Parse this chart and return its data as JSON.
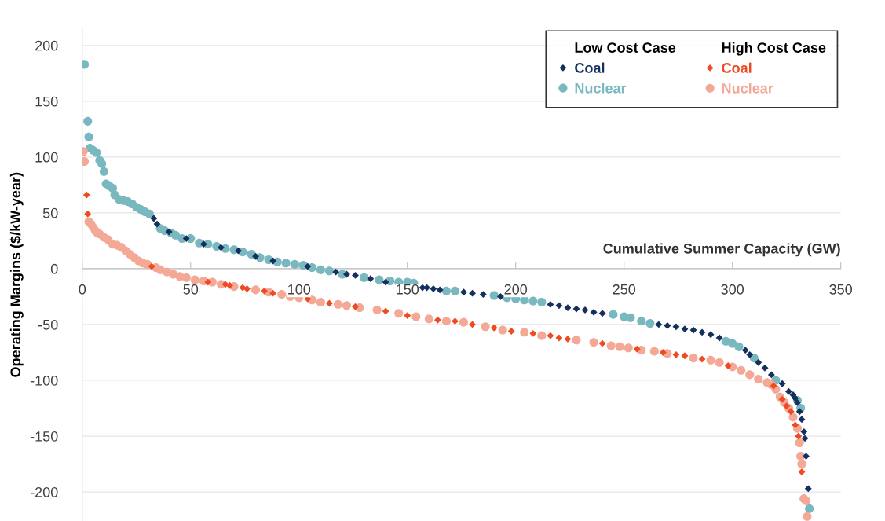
{
  "chart_data": {
    "type": "scatter",
    "xlabel": "Cumulative Summer Capacity (GW)",
    "ylabel": "Operating Margins ($/kW-year)",
    "xlim": [
      0,
      350
    ],
    "xticks": [
      0,
      50,
      100,
      150,
      200,
      250,
      300,
      350
    ],
    "ylim": [
      -226,
      215
    ],
    "yticks": [
      -200,
      -150,
      -100,
      -50,
      0,
      50,
      100,
      150,
      200
    ],
    "grid": "y",
    "legend": "top right",
    "annotations": [
      "Low Cost Case",
      "High Cost Case"
    ],
    "series": [
      {
        "name": "Coal",
        "color": "#14305e",
        "marker": "diamond",
        "x": [
          33,
          34.5,
          40,
          48,
          56,
          64,
          72,
          80,
          88,
          104,
          117,
          122,
          126,
          133,
          140,
          157,
          159,
          162,
          165,
          176,
          180,
          185,
          193,
          216,
          220,
          224,
          228,
          232,
          236,
          240,
          266,
          270,
          274,
          278,
          282,
          286,
          290,
          294,
          306,
          308,
          312,
          315,
          318,
          323,
          326,
          328,
          329,
          330,
          331,
          332,
          333,
          333.5,
          334,
          335
        ],
        "values": [
          45,
          40,
          33,
          27,
          22,
          19,
          16,
          11,
          7,
          2,
          -3,
          -5,
          -6,
          -9,
          -12,
          -17,
          -17,
          -18,
          -19,
          -21,
          -22,
          -23,
          -25,
          -32,
          -33,
          -35,
          -36,
          -37,
          -39,
          -40,
          -50,
          -51,
          -52,
          -54,
          -55,
          -57,
          -59,
          -62,
          -73,
          -77,
          -84,
          -89,
          -95,
          -103,
          -110,
          -113,
          -116,
          -120,
          -128,
          -135,
          -146,
          -152,
          -168,
          -197
        ]
      },
      {
        "name": "Nuclear",
        "color": "#7ab8bf",
        "marker": "circle",
        "x": [
          1,
          2.5,
          3,
          3.5,
          5,
          6.5,
          8,
          9,
          10,
          11,
          12.5,
          14,
          15,
          17,
          19,
          21,
          23,
          25,
          27,
          29,
          31,
          36,
          38,
          41,
          43,
          46,
          50,
          54,
          58,
          62,
          66,
          70,
          74,
          78,
          82,
          86,
          90,
          94,
          98,
          102,
          106,
          110,
          114,
          120,
          130,
          137,
          142,
          146,
          150,
          153,
          168,
          172,
          190,
          196,
          200,
          204,
          208,
          212,
          245,
          250,
          253,
          258,
          262,
          297,
          300,
          303,
          310,
          320,
          330,
          331.5,
          335.5
        ],
        "values": [
          183,
          132,
          118,
          108,
          106,
          104,
          97,
          94,
          87,
          76,
          74,
          72,
          66,
          62,
          61,
          60,
          58,
          55,
          53,
          51,
          49,
          36,
          34,
          32,
          30,
          27,
          27,
          23,
          22,
          20,
          18,
          17,
          15,
          13,
          10,
          8,
          6,
          5,
          4,
          3,
          1,
          -1,
          -2,
          -5,
          -8,
          -10,
          -11,
          -12,
          -12,
          -13,
          -20,
          -20,
          -24,
          -26,
          -27,
          -28,
          -29,
          -30,
          -41,
          -43,
          -44,
          -47,
          -49,
          -65,
          -67,
          -70,
          -80,
          -100,
          -118,
          -125,
          -215
        ]
      },
      {
        "name": "Coal",
        "color": "#ef4a22",
        "marker": "diamond",
        "x": [
          2,
          2.5,
          32,
          58,
          66,
          68,
          74,
          76,
          84,
          88,
          104,
          114,
          126,
          140,
          150,
          164,
          172,
          180,
          190,
          198,
          208,
          216,
          220,
          224,
          240,
          256,
          268,
          274,
          278,
          286,
          298,
          319,
          323,
          325,
          327,
          329,
          330.5,
          332
        ],
        "values": [
          66,
          49,
          2,
          -12,
          -14,
          -15,
          -17,
          -18,
          -20,
          -22,
          -27,
          -31,
          -34,
          -38,
          -42,
          -46,
          -47,
          -50,
          -53,
          -56,
          -58,
          -60,
          -62,
          -63,
          -67,
          -72,
          -75,
          -77,
          -78,
          -81,
          -87,
          -105,
          -117,
          -123,
          -128,
          -140,
          -150,
          -182
        ]
      },
      {
        "name": "Nuclear",
        "color": "#f4a996",
        "marker": "circle",
        "x": [
          0.5,
          1,
          3,
          4,
          5,
          6,
          7,
          8,
          10,
          12,
          14,
          16,
          18,
          20,
          22,
          24,
          26,
          28,
          30,
          34,
          36,
          39,
          42,
          45,
          48,
          52,
          56,
          60,
          64,
          70,
          80,
          86,
          92,
          96,
          100,
          106,
          110,
          118,
          122,
          128,
          136,
          146,
          154,
          160,
          168,
          176,
          186,
          194,
          204,
          212,
          228,
          236,
          244,
          248,
          252,
          258,
          264,
          270,
          282,
          290,
          294,
          300,
          304,
          308,
          312,
          316,
          318,
          320,
          322,
          324,
          326,
          328,
          330,
          331,
          331.5,
          332,
          333,
          334,
          334.5
        ],
        "values": [
          105,
          96,
          42,
          40,
          37,
          34,
          32,
          31,
          28,
          26,
          22,
          21,
          19,
          16,
          13,
          10,
          7,
          5,
          4,
          1,
          -1,
          -3,
          -5,
          -7,
          -8,
          -10,
          -11,
          -12,
          -14,
          -16,
          -19,
          -21,
          -23,
          -25,
          -26,
          -28,
          -30,
          -32,
          -33,
          -35,
          -37,
          -40,
          -43,
          -45,
          -47,
          -48,
          -52,
          -55,
          -57,
          -60,
          -64,
          -66,
          -69,
          -70,
          -71,
          -73,
          -74,
          -76,
          -80,
          -82,
          -84,
          -88,
          -91,
          -95,
          -99,
          -102,
          -104,
          -108,
          -115,
          -120,
          -125,
          -133,
          -143,
          -156,
          -168,
          -175,
          -206,
          -208,
          -222
        ]
      }
    ]
  }
}
